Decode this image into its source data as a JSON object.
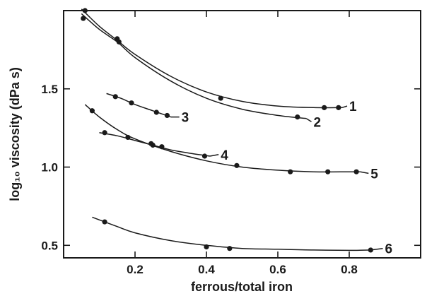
{
  "chart_data": {
    "type": "line",
    "xlabel": "ferrous/total iron",
    "ylabel": "log₁₀ viscosity (dPa s)",
    "xlim": [
      0.0,
      1.0
    ],
    "ylim": [
      0.42,
      2.0
    ],
    "x_ticks": [
      {
        "value": 0.2,
        "label": "0.2"
      },
      {
        "value": 0.4,
        "label": "0.4"
      },
      {
        "value": 0.6,
        "label": "0.6"
      },
      {
        "value": 0.8,
        "label": "0.8"
      }
    ],
    "y_ticks": [
      {
        "value": 0.5,
        "label": "0.5"
      },
      {
        "value": 1.0,
        "label": "1.0"
      },
      {
        "value": 1.5,
        "label": "1.5"
      }
    ],
    "grid": false,
    "series": [
      {
        "name": "1",
        "points": [
          [
            0.06,
            2.0
          ],
          [
            0.15,
            1.82
          ],
          [
            0.44,
            1.44
          ],
          [
            0.73,
            1.38
          ],
          [
            0.77,
            1.38
          ]
        ],
        "curve": [
          [
            0.05,
            2.01
          ],
          [
            0.1,
            1.9
          ],
          [
            0.15,
            1.81
          ],
          [
            0.2,
            1.72
          ],
          [
            0.3,
            1.58
          ],
          [
            0.4,
            1.48
          ],
          [
            0.5,
            1.42
          ],
          [
            0.6,
            1.39
          ],
          [
            0.7,
            1.38
          ],
          [
            0.78,
            1.38
          ]
        ],
        "label_at": [
          0.8,
          1.39
        ]
      },
      {
        "name": "2",
        "points": [
          [
            0.055,
            1.95
          ],
          [
            0.155,
            1.8
          ],
          [
            0.655,
            1.32
          ]
        ],
        "curve": [
          [
            0.05,
            1.98
          ],
          [
            0.1,
            1.88
          ],
          [
            0.15,
            1.8
          ],
          [
            0.2,
            1.7
          ],
          [
            0.3,
            1.55
          ],
          [
            0.4,
            1.44
          ],
          [
            0.5,
            1.37
          ],
          [
            0.6,
            1.33
          ],
          [
            0.68,
            1.31
          ]
        ],
        "label_at": [
          0.7,
          1.29
        ]
      },
      {
        "name": "3",
        "points": [
          [
            0.145,
            1.45
          ],
          [
            0.19,
            1.41
          ],
          [
            0.26,
            1.35
          ],
          [
            0.29,
            1.33
          ]
        ],
        "curve": [
          [
            0.12,
            1.47
          ],
          [
            0.16,
            1.44
          ],
          [
            0.2,
            1.4
          ],
          [
            0.25,
            1.36
          ],
          [
            0.3,
            1.32
          ]
        ],
        "label_at": [
          0.33,
          1.32
        ]
      },
      {
        "name": "4",
        "points": [
          [
            0.115,
            1.22
          ],
          [
            0.18,
            1.19
          ],
          [
            0.245,
            1.15
          ],
          [
            0.275,
            1.13
          ],
          [
            0.395,
            1.07
          ]
        ],
        "curve": [
          [
            0.1,
            1.22
          ],
          [
            0.15,
            1.2
          ],
          [
            0.2,
            1.17
          ],
          [
            0.25,
            1.14
          ],
          [
            0.3,
            1.11
          ],
          [
            0.35,
            1.09
          ],
          [
            0.41,
            1.07
          ]
        ],
        "label_at": [
          0.44,
          1.08
        ]
      },
      {
        "name": "5",
        "points": [
          [
            0.08,
            1.36
          ],
          [
            0.25,
            1.14
          ],
          [
            0.485,
            1.01
          ],
          [
            0.635,
            0.97
          ],
          [
            0.74,
            0.97
          ],
          [
            0.82,
            0.97
          ]
        ],
        "curve": [
          [
            0.06,
            1.4
          ],
          [
            0.1,
            1.32
          ],
          [
            0.15,
            1.24
          ],
          [
            0.2,
            1.18
          ],
          [
            0.3,
            1.1
          ],
          [
            0.4,
            1.04
          ],
          [
            0.5,
            1.0
          ],
          [
            0.6,
            0.98
          ],
          [
            0.7,
            0.97
          ],
          [
            0.8,
            0.97
          ],
          [
            0.83,
            0.97
          ]
        ],
        "label_at": [
          0.86,
          0.96
        ]
      },
      {
        "name": "6",
        "points": [
          [
            0.115,
            0.65
          ],
          [
            0.4,
            0.49
          ],
          [
            0.465,
            0.48
          ],
          [
            0.86,
            0.47
          ]
        ],
        "curve": [
          [
            0.08,
            0.68
          ],
          [
            0.15,
            0.62
          ],
          [
            0.2,
            0.58
          ],
          [
            0.3,
            0.53
          ],
          [
            0.4,
            0.5
          ],
          [
            0.5,
            0.48
          ],
          [
            0.6,
            0.475
          ],
          [
            0.7,
            0.47
          ],
          [
            0.8,
            0.468
          ],
          [
            0.86,
            0.47
          ]
        ],
        "label_at": [
          0.9,
          0.48
        ]
      }
    ]
  }
}
